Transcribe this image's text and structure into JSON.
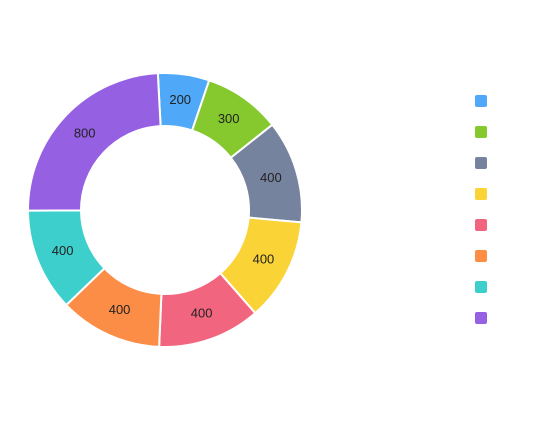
{
  "chart_data": {
    "type": "donut",
    "values": [
      200,
      300,
      400,
      400,
      400,
      400,
      400,
      800
    ],
    "colors": [
      "#4fa8f8",
      "#85c92f",
      "#76839f",
      "#fad337",
      "#f2657f",
      "#fc8d47",
      "#3ccfcc",
      "#9660e3"
    ]
  }
}
